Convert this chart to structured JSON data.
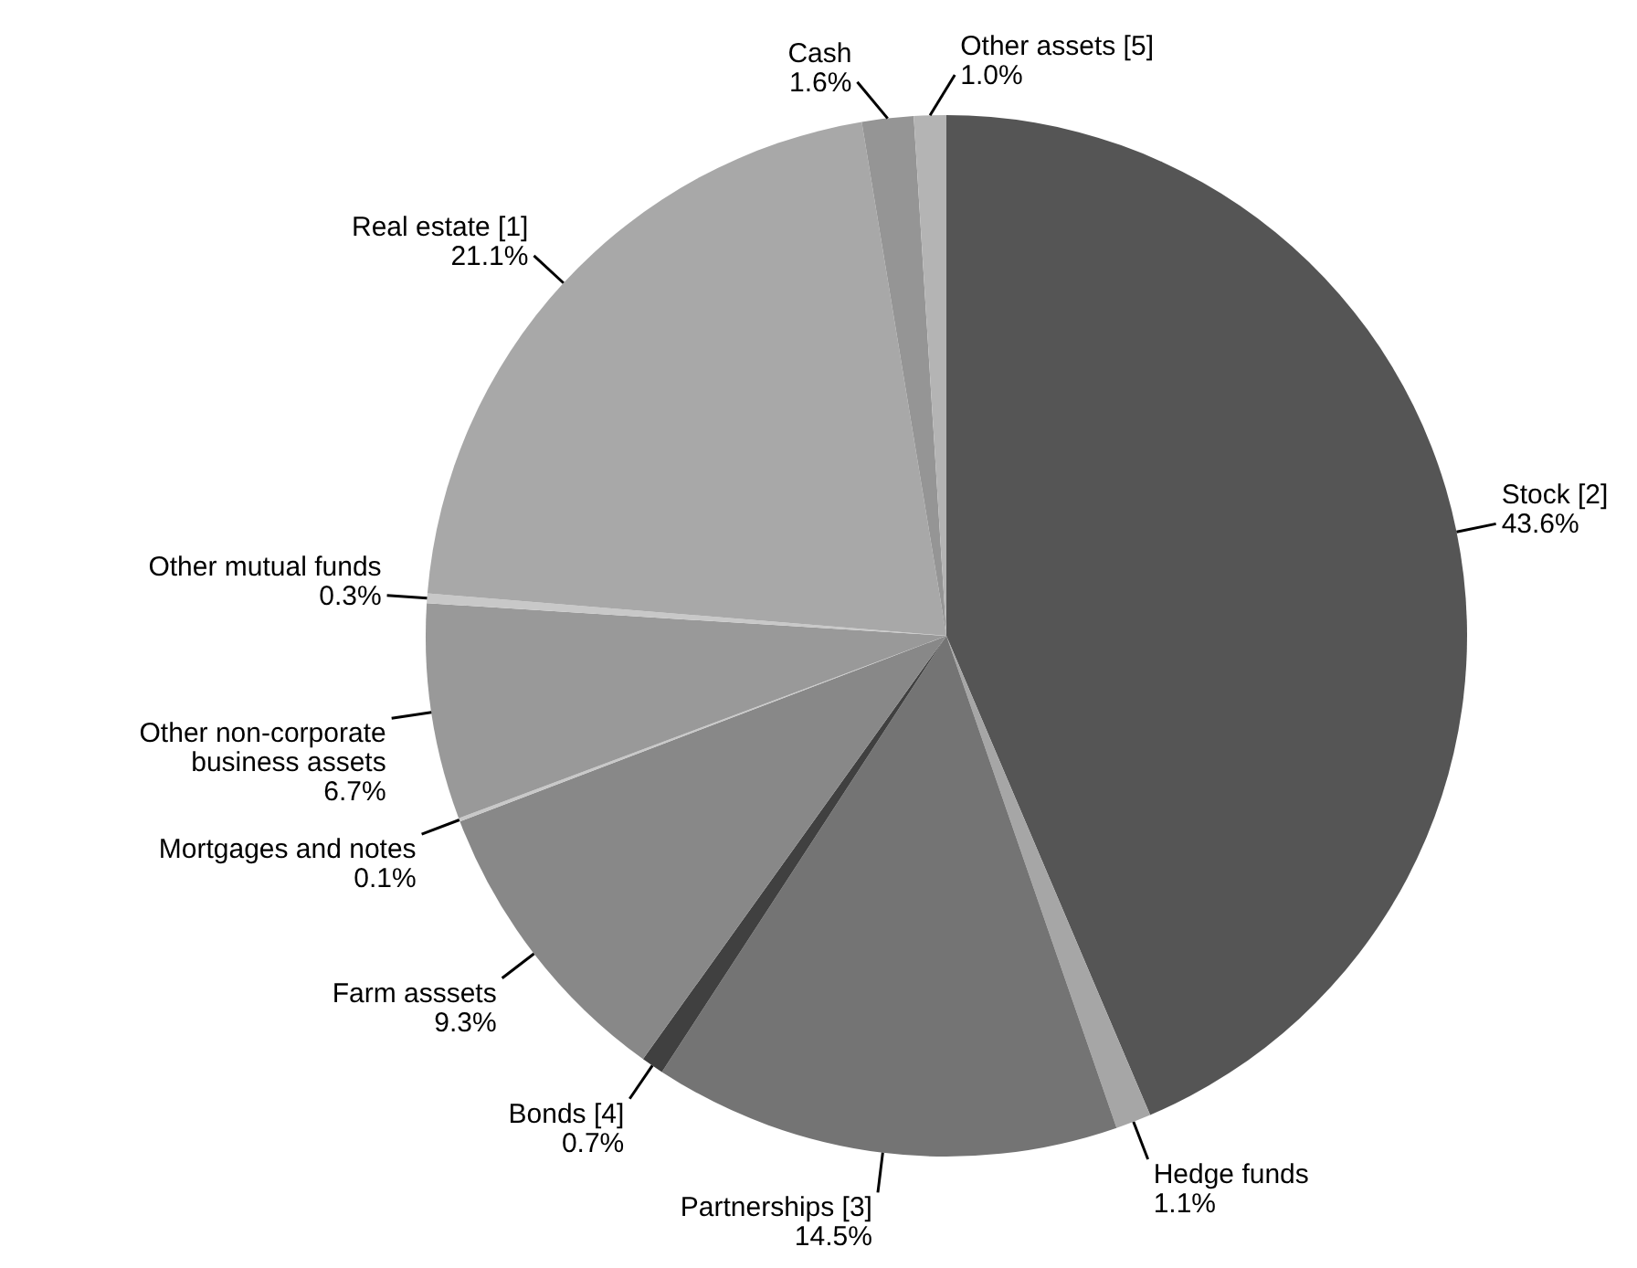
{
  "chart_data": {
    "type": "pie",
    "categories": [
      "Stock [2]",
      "Hedge funds",
      "Partnerships [3]",
      "Bonds [4]",
      "Farm asssets",
      "Mortgages and notes",
      "Other non-corporate business assets",
      "Other mutual funds",
      "Real estate [1]",
      "Cash",
      "Other assets [5]"
    ],
    "values": [
      43.6,
      1.1,
      14.5,
      0.7,
      9.3,
      0.1,
      6.7,
      0.3,
      21.1,
      1.6,
      1.0
    ],
    "colors": [
      "#555555",
      "#a6a6a6",
      "#747474",
      "#404040",
      "#888888",
      "#c8c8c8",
      "#999999",
      "#c8c8c8",
      "#a8a8a8",
      "#959595",
      "#b4b4b4"
    ],
    "value_labels": [
      "43.6%",
      "1.1%",
      "14.5%",
      "0.7%",
      "9.3%",
      "0.1%",
      "6.7%",
      "0.3%",
      "21.1%",
      "1.6%",
      "1.0%"
    ]
  }
}
